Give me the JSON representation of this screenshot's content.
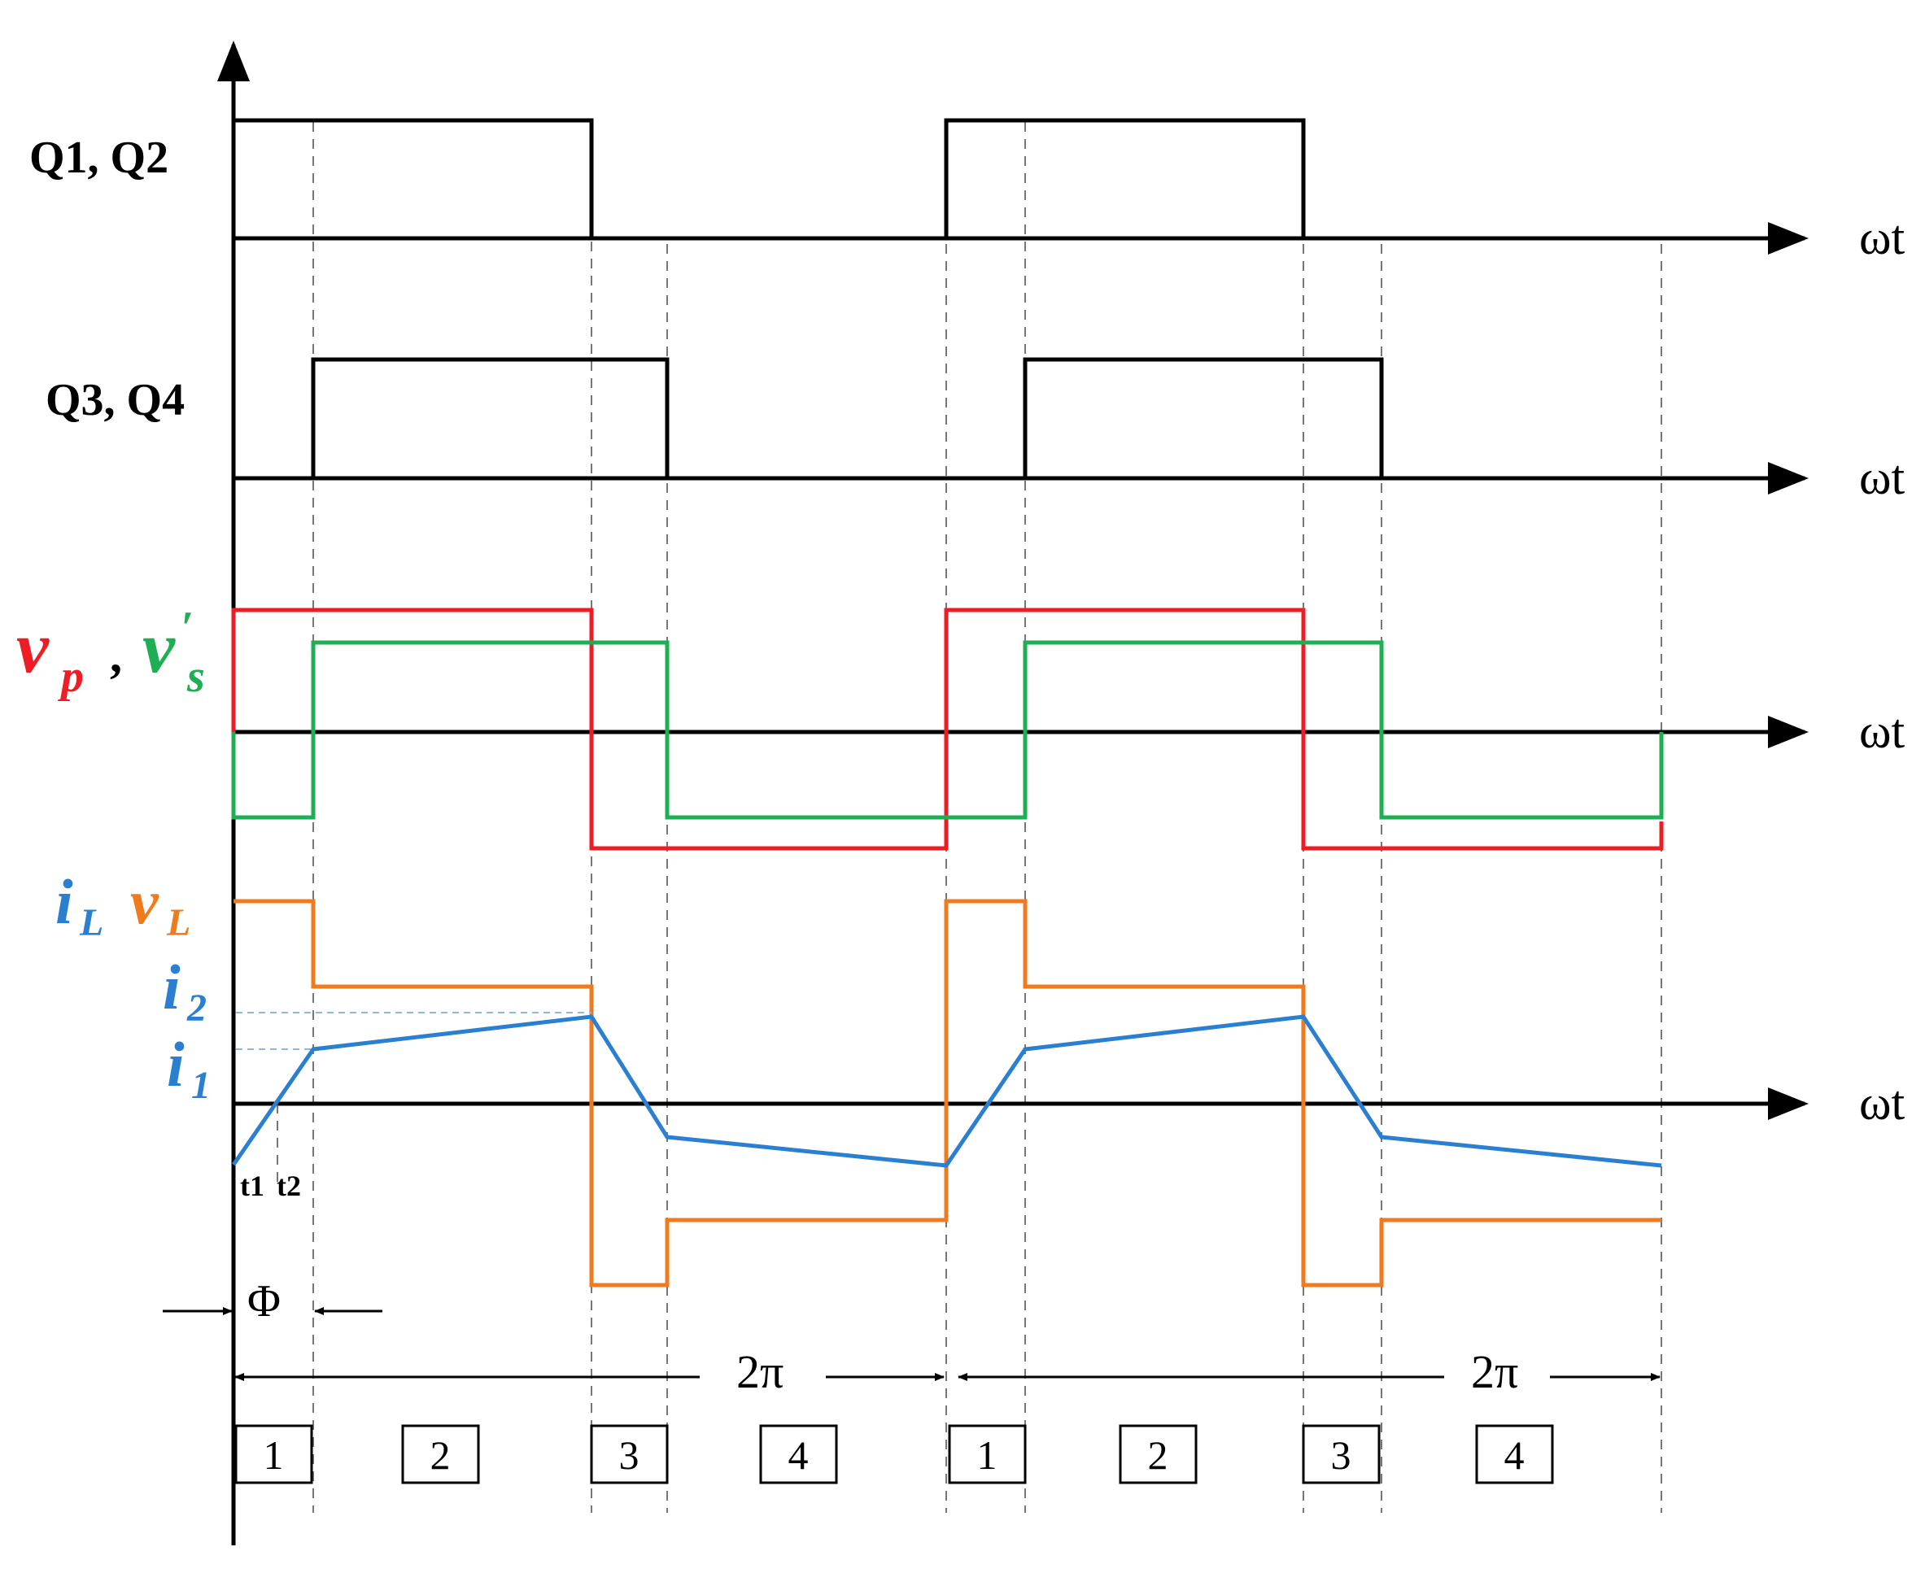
{
  "labels": {
    "q1q2": "Q1, Q2",
    "q3q4": "Q3, Q4",
    "axis": "ωt",
    "vp_main": "v",
    "vp_sub": "p",
    "comma": ",",
    "vs_main": "v",
    "vs_prime": "′",
    "vs_sub": "s",
    "il_main": "i",
    "il_sub": "L",
    "vl_main": "v",
    "vl_sub": "L",
    "i2_main": "i",
    "i2_sub": "2",
    "i1_main": "i",
    "i1_sub": "1",
    "t1": "t1",
    "t2": "t2",
    "phi": "Φ",
    "period": "2π",
    "intervals": [
      "1",
      "2",
      "3",
      "4",
      "1",
      "2",
      "3",
      "4"
    ]
  },
  "colors": {
    "gate": "#000000",
    "vp": "#ee1c24",
    "vs": "#1fae54",
    "iL": "#2a7fd0",
    "vL": "#f07a1e",
    "ref": "#8db8e0"
  }
}
